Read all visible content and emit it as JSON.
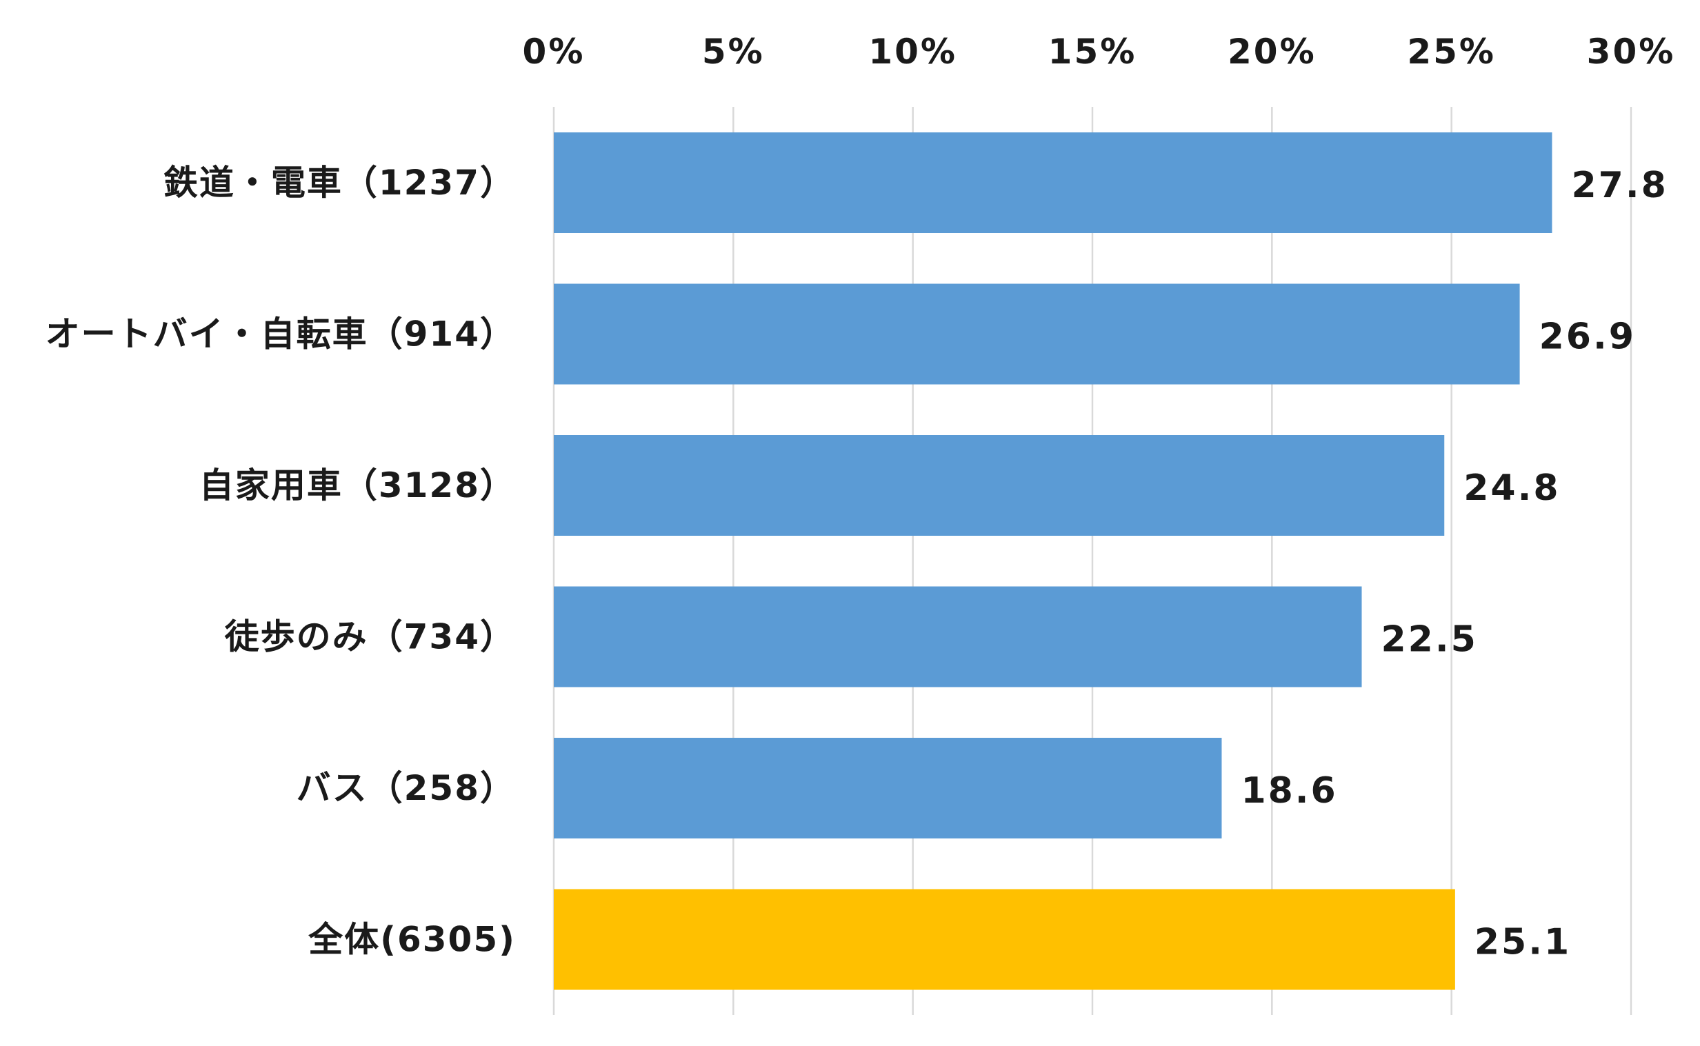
{
  "chart_data": {
    "type": "bar",
    "orientation": "horizontal",
    "categories": [
      "鉄道・電車（1237）",
      "オートバイ・自転車（914）",
      "自家用車（3128）",
      "徒歩のみ（734）",
      "バス（258）",
      "全体(6305)"
    ],
    "values": [
      27.8,
      26.9,
      24.8,
      22.5,
      18.6,
      25.1
    ],
    "value_labels": [
      "27.8",
      "26.9",
      "24.8",
      "22.5",
      "18.6",
      "25.1"
    ],
    "bar_colors": [
      "#5B9BD5",
      "#5B9BD5",
      "#5B9BD5",
      "#5B9BD5",
      "#5B9BD5",
      "#FFC000"
    ],
    "xlim": [
      0,
      30
    ],
    "x_ticks": [
      0,
      5,
      10,
      15,
      20,
      25,
      30
    ],
    "x_tick_labels": [
      "0%",
      "5%",
      "10%",
      "15%",
      "20%",
      "25%",
      "30%"
    ],
    "x_axis_position": "top",
    "grid": true,
    "title": "",
    "xlabel": "",
    "ylabel": ""
  }
}
